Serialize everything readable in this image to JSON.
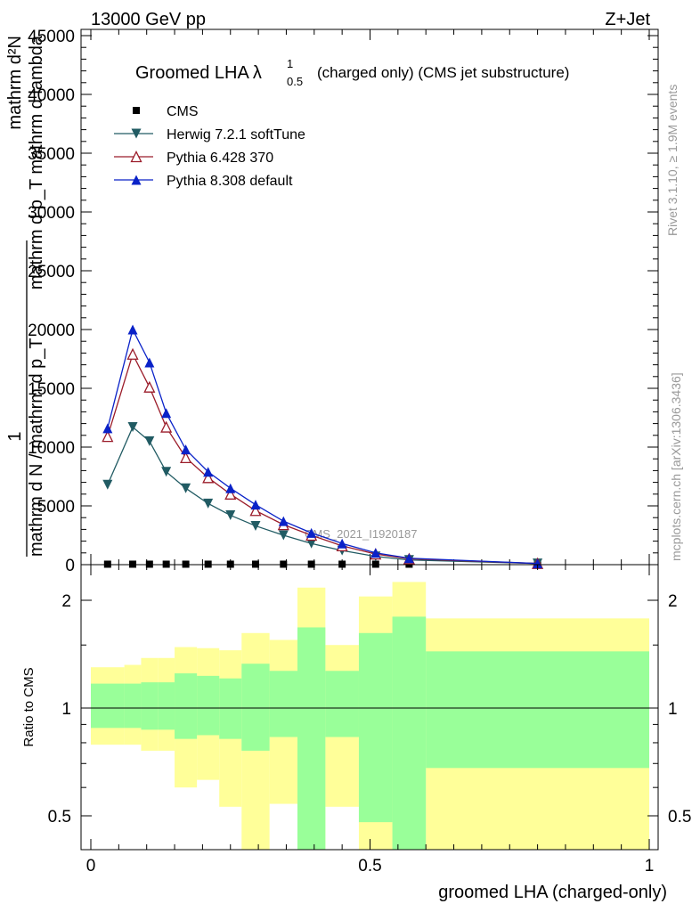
{
  "header": {
    "left": "13000 GeV pp",
    "right": "Z+Jet"
  },
  "side_labels": {
    "rivet": "Rivet 3.1.10, ≥ 1.9M events",
    "mcplots": "mcplots.cern.ch [arXiv:1306.3436]"
  },
  "chart_data": [
    {
      "type": "line",
      "title": "Groomed LHA",
      "title_symbol": "λ",
      "title_sup": "1",
      "title_sub": "0.5",
      "title_suffix": "(charged only) (CMS jet substructure)",
      "watermark": "CMS_2021_I1920187",
      "ylabel_fragments": [
        "mathrm d²N",
        "mathrm d p_T mathrm d lambda",
        "1",
        "mathrm d N / mathrm d p_T"
      ],
      "ylim": [
        0,
        45000
      ],
      "xlim": [
        0,
        1
      ],
      "yticks": [
        0,
        5000,
        10000,
        15000,
        20000,
        25000,
        30000,
        35000,
        40000,
        45000
      ],
      "ytick_labels": [
        "0",
        "5000",
        "10000",
        "15000",
        "20000",
        "25000",
        "30000",
        "35000",
        "40000",
        "45000"
      ],
      "x": [
        0.03,
        0.075,
        0.105,
        0.135,
        0.17,
        0.21,
        0.25,
        0.295,
        0.345,
        0.395,
        0.45,
        0.51,
        0.57,
        0.8
      ],
      "series": [
        {
          "name": "CMS",
          "color": "#000000",
          "marker": "square",
          "values": [
            40,
            40,
            40,
            40,
            40,
            40,
            40,
            40,
            40,
            40,
            40,
            40,
            40,
            40
          ]
        },
        {
          "name": "Herwig 7.2.1 softTune",
          "color": "#215b63",
          "marker": "triangle-down",
          "values": [
            6800,
            11700,
            10500,
            7900,
            6500,
            5200,
            4200,
            3300,
            2500,
            1800,
            1200,
            700,
            400,
            100
          ]
        },
        {
          "name": "Pythia 6.428 370",
          "color": "#9b1c2a",
          "marker": "triangle-up-open",
          "values": [
            10900,
            17900,
            15100,
            11700,
            9100,
            7400,
            6000,
            4600,
            3400,
            2500,
            1600,
            900,
            500,
            100
          ]
        },
        {
          "name": "Pythia 8.308 default",
          "color": "#0a22c8",
          "marker": "triangle-up",
          "values": [
            11600,
            20000,
            17200,
            12900,
            9800,
            7900,
            6500,
            5100,
            3700,
            2700,
            1800,
            1000,
            550,
            100
          ]
        }
      ]
    },
    {
      "type": "area",
      "ylabel": "Ratio to CMS",
      "xlabel": "groomed LHA (charged-only)",
      "xlim": [
        0,
        1
      ],
      "ylim": [
        0.35,
        2.25
      ],
      "xticks": [
        0,
        0.5,
        1
      ],
      "xtick_labels": [
        "0",
        "0.5",
        "1"
      ],
      "yticks": [
        0.5,
        1,
        2
      ],
      "ytick_labels": [
        "0.5",
        "1",
        "2"
      ],
      "reference": 1,
      "colors": {
        "outer": "#ffff99",
        "inner": "#99ff99",
        "line": "#000000"
      },
      "bins": [
        {
          "lo": 0.0,
          "hi": 0.06,
          "outer": [
            0.79,
            1.3
          ],
          "inner": [
            0.88,
            1.17
          ]
        },
        {
          "lo": 0.06,
          "hi": 0.09,
          "outer": [
            0.79,
            1.32
          ],
          "inner": [
            0.88,
            1.17
          ]
        },
        {
          "lo": 0.09,
          "hi": 0.12,
          "outer": [
            0.76,
            1.38
          ],
          "inner": [
            0.87,
            1.18
          ]
        },
        {
          "lo": 0.12,
          "hi": 0.15,
          "outer": [
            0.76,
            1.38
          ],
          "inner": [
            0.87,
            1.18
          ]
        },
        {
          "lo": 0.15,
          "hi": 0.19,
          "outer": [
            0.6,
            1.48
          ],
          "inner": [
            0.82,
            1.25
          ]
        },
        {
          "lo": 0.19,
          "hi": 0.23,
          "outer": [
            0.63,
            1.47
          ],
          "inner": [
            0.84,
            1.23
          ]
        },
        {
          "lo": 0.23,
          "hi": 0.27,
          "outer": [
            0.53,
            1.45
          ],
          "inner": [
            0.82,
            1.21
          ]
        },
        {
          "lo": 0.27,
          "hi": 0.32,
          "outer": [
            0.4,
            1.62
          ],
          "inner": [
            0.76,
            1.33
          ]
        },
        {
          "lo": 0.32,
          "hi": 0.37,
          "outer": [
            0.54,
            1.55
          ],
          "inner": [
            0.83,
            1.27
          ]
        },
        {
          "lo": 0.37,
          "hi": 0.42,
          "outer": [
            0.35,
            2.17
          ],
          "inner": [
            0.35,
            1.68
          ]
        },
        {
          "lo": 0.42,
          "hi": 0.48,
          "outer": [
            0.53,
            1.5
          ],
          "inner": [
            0.83,
            1.27
          ]
        },
        {
          "lo": 0.48,
          "hi": 0.54,
          "outer": [
            0.35,
            2.05
          ],
          "inner": [
            0.48,
            1.62
          ]
        },
        {
          "lo": 0.54,
          "hi": 0.6,
          "outer": [
            0.35,
            2.25
          ],
          "inner": [
            0.35,
            1.8
          ]
        },
        {
          "lo": 0.6,
          "hi": 1.0,
          "outer": [
            0.35,
            1.78
          ],
          "inner": [
            0.68,
            1.44
          ]
        }
      ]
    }
  ]
}
